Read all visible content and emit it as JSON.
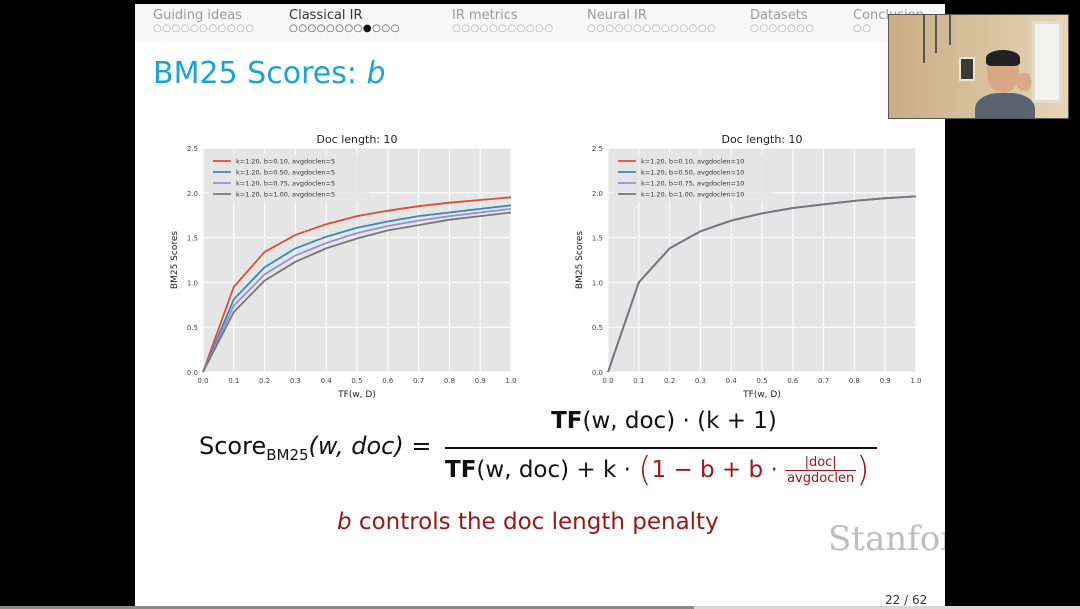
{
  "nav": {
    "sections": [
      {
        "title": "Guiding ideas",
        "dots": 11,
        "current": -1
      },
      {
        "title": "Classical IR",
        "dots": 12,
        "current": 8
      },
      {
        "title": "IR metrics",
        "dots": 11,
        "current": -1
      },
      {
        "title": "Neural IR",
        "dots": 14,
        "current": -1
      },
      {
        "title": "Datasets",
        "dots": 7,
        "current": -1
      },
      {
        "title": "Conclusion",
        "dots": 2,
        "current": -1
      }
    ]
  },
  "slide": {
    "title_prefix": "BM25 Scores: ",
    "title_var": "b",
    "caption_var": "b",
    "caption_rest": " controls the doc length penalty",
    "logo_text": "Stanford",
    "page_number": "22 / 62"
  },
  "formula": {
    "score_label": "Score",
    "score_sub": "BM25",
    "lhs_args": "(w, doc) =",
    "tf": "TF",
    "num_args": "(w, doc) · (k + 1)",
    "den_args": "(w, doc) + k · ",
    "den_red_inner": "1 − b + b · ",
    "frac_num": "|doc|",
    "frac_den": "avgdoclen"
  },
  "colors": {
    "title": "#1aa3d9",
    "caption": "#9b1515",
    "series": [
      "#e24a33",
      "#348abd",
      "#988ed5",
      "#777777"
    ],
    "plot_bg": "#e5e5e5"
  },
  "chart_data": [
    {
      "type": "line",
      "title": "Doc length: 10",
      "xlabel": "TF(w, D)",
      "ylabel": "BM25 Scores",
      "xlim": [
        0,
        1
      ],
      "ylim": [
        0,
        2.5
      ],
      "xticks": [
        "0.0",
        "0.1",
        "0.2",
        "0.3",
        "0.4",
        "0.5",
        "0.6",
        "0.7",
        "0.8",
        "0.9",
        "1.0"
      ],
      "yticks": [
        "0.0",
        "0.5",
        "1.0",
        "1.5",
        "2.0",
        "2.5"
      ],
      "grid": true,
      "legend": "top-left",
      "x": [
        0,
        0.1,
        0.2,
        0.3,
        0.4,
        0.5,
        0.6,
        0.7,
        0.8,
        0.9,
        1.0
      ],
      "series": [
        {
          "name": "k=1.20, b=0.10, avgdoclen=5",
          "values": [
            0,
            0.95,
            1.34,
            1.53,
            1.65,
            1.74,
            1.8,
            1.85,
            1.89,
            1.92,
            1.95
          ]
        },
        {
          "name": "k=1.20, b=0.50, avgdoclen=5",
          "values": [
            0,
            0.81,
            1.17,
            1.38,
            1.51,
            1.61,
            1.68,
            1.74,
            1.78,
            1.82,
            1.86
          ]
        },
        {
          "name": "k=1.20, b=0.75, avgdoclen=5",
          "values": [
            0,
            0.74,
            1.09,
            1.3,
            1.44,
            1.55,
            1.63,
            1.69,
            1.74,
            1.78,
            1.82
          ]
        },
        {
          "name": "k=1.20, b=1.00, avgdoclen=5",
          "values": [
            0,
            0.67,
            1.02,
            1.23,
            1.38,
            1.49,
            1.58,
            1.64,
            1.7,
            1.74,
            1.78
          ]
        }
      ]
    },
    {
      "type": "line",
      "title": "Doc length: 10",
      "xlabel": "TF(w, D)",
      "ylabel": "BM25 Scores",
      "xlim": [
        0,
        1
      ],
      "ylim": [
        0,
        2.5
      ],
      "xticks": [
        "0.0",
        "0.1",
        "0.2",
        "0.3",
        "0.4",
        "0.5",
        "0.6",
        "0.7",
        "0.8",
        "0.9",
        "1.0"
      ],
      "yticks": [
        "0.0",
        "0.5",
        "1.0",
        "1.5",
        "2.0",
        "2.5"
      ],
      "grid": true,
      "legend": "top-left",
      "x": [
        0,
        0.1,
        0.2,
        0.3,
        0.4,
        0.5,
        0.6,
        0.7,
        0.8,
        0.9,
        1.0
      ],
      "series": [
        {
          "name": "k=1.20, b=0.10, avgdoclen=10",
          "values": [
            0,
            1.0,
            1.38,
            1.57,
            1.69,
            1.77,
            1.83,
            1.87,
            1.91,
            1.94,
            1.96
          ]
        },
        {
          "name": "k=1.20, b=0.50, avgdoclen=10",
          "values": [
            0,
            1.0,
            1.38,
            1.57,
            1.69,
            1.77,
            1.83,
            1.87,
            1.91,
            1.94,
            1.96
          ]
        },
        {
          "name": "k=1.20, b=0.75, avgdoclen=10",
          "values": [
            0,
            1.0,
            1.38,
            1.57,
            1.69,
            1.77,
            1.83,
            1.87,
            1.91,
            1.94,
            1.96
          ]
        },
        {
          "name": "k=1.20, b=1.00, avgdoclen=10",
          "values": [
            0,
            1.0,
            1.38,
            1.57,
            1.69,
            1.77,
            1.83,
            1.87,
            1.91,
            1.94,
            1.96
          ]
        }
      ]
    }
  ]
}
